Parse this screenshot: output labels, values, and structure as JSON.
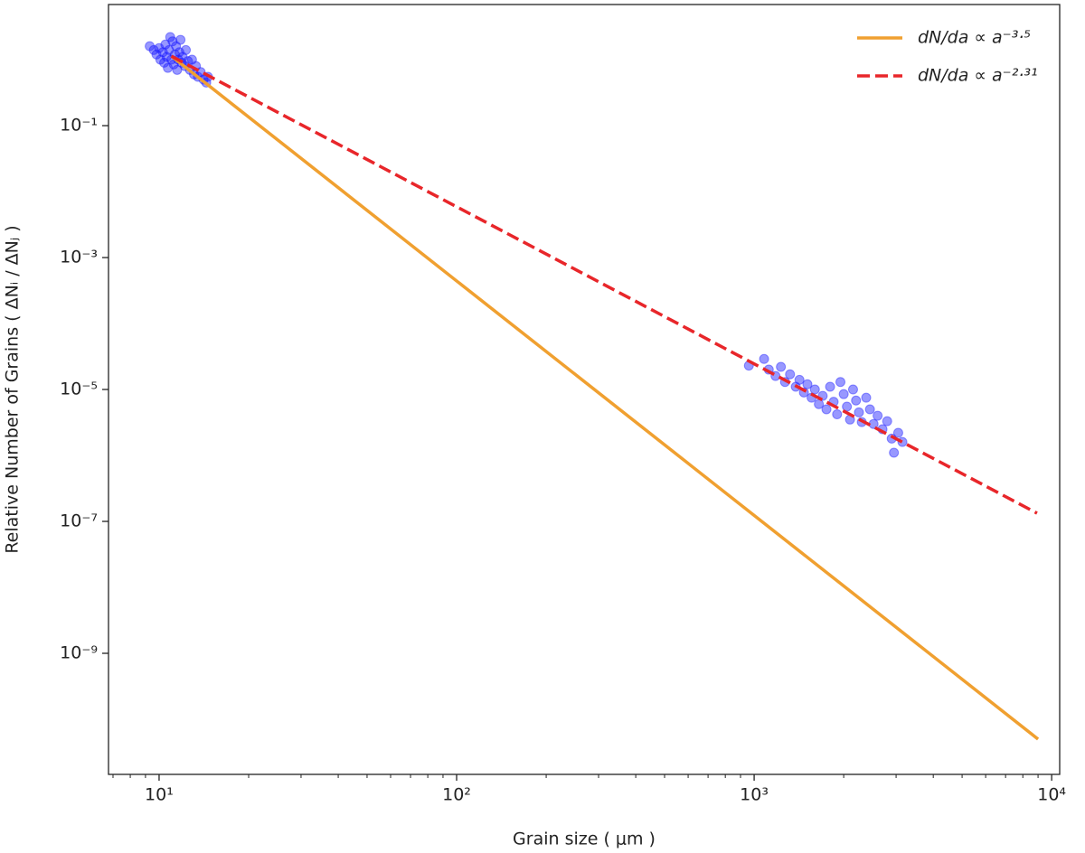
{
  "chart_data": {
    "type": "scatter",
    "xlabel": "Grain size ( μm )",
    "ylabel": "Relative Number of Grains ( ΔNᵢ / ΔNⱼ )",
    "xscale": "log",
    "yscale": "log",
    "xlim": [
      6.76,
      10640
    ],
    "ylim": [
      1.46e-11,
      6.86
    ],
    "xticks": [
      {
        "value": 10,
        "label": "10¹"
      },
      {
        "value": 100,
        "label": "10²"
      },
      {
        "value": 1000,
        "label": "10³"
      },
      {
        "value": 10000,
        "label": "10⁴"
      }
    ],
    "xminorticks": [
      7,
      8,
      9,
      20,
      30,
      40,
      50,
      60,
      70,
      80,
      90,
      200,
      300,
      400,
      500,
      600,
      700,
      800,
      900,
      2000,
      3000,
      4000,
      5000,
      6000,
      7000,
      8000,
      9000
    ],
    "yticks": [
      {
        "value": 0.1,
        "label": "10⁻¹"
      },
      {
        "value": 0.001,
        "label": "10⁻³"
      },
      {
        "value": 1e-05,
        "label": "10⁻⁵"
      },
      {
        "value": 1e-07,
        "label": "10⁻⁷"
      },
      {
        "value": 1e-09,
        "label": "10⁻⁹"
      }
    ],
    "legend": "upper right",
    "series": [
      {
        "type": "scatter",
        "color": "#1a1aff",
        "alpha": 0.45,
        "x": [
          9.3,
          9.6,
          9.8,
          10.0,
          10.1,
          10.3,
          10.4,
          10.5,
          10.6,
          10.7,
          10.8,
          10.9,
          11.0,
          11.1,
          11.2,
          11.3,
          11.4,
          11.5,
          11.6,
          11.7,
          11.8,
          11.9,
          12.0,
          12.2,
          12.3,
          12.5,
          12.7,
          12.9,
          13.1,
          13.3,
          13.5,
          13.8,
          14.1,
          14.4,
          14.6,
          960,
          1080,
          1120,
          1180,
          1230,
          1270,
          1320,
          1380,
          1420,
          1470,
          1510,
          1560,
          1600,
          1650,
          1700,
          1750,
          1800,
          1850,
          1900,
          1950,
          2000,
          2050,
          2100,
          2150,
          2200,
          2250,
          2300,
          2380,
          2450,
          2520,
          2600,
          2700,
          2800,
          2900,
          2950,
          3050,
          3150
        ],
        "values": [
          1.6,
          1.4,
          1.2,
          1.5,
          1.0,
          1.3,
          0.9,
          1.7,
          1.1,
          0.75,
          1.4,
          2.2,
          1.0,
          1.9,
          0.85,
          1.2,
          1.6,
          0.7,
          1.0,
          1.3,
          2.0,
          0.9,
          1.1,
          0.8,
          1.4,
          0.95,
          0.7,
          1.0,
          0.6,
          0.8,
          0.55,
          0.65,
          0.5,
          0.45,
          0.55,
          2.3e-05,
          2.9e-05,
          2e-05,
          1.6e-05,
          2.2e-05,
          1.3e-05,
          1.7e-05,
          1.1e-05,
          1.4e-05,
          9e-06,
          1.2e-05,
          7.5e-06,
          1e-05,
          6e-06,
          8e-06,
          5e-06,
          1.1e-05,
          6.5e-06,
          4.2e-06,
          1.3e-05,
          8.5e-06,
          5.5e-06,
          3.5e-06,
          1e-05,
          6.8e-06,
          4.5e-06,
          3.2e-06,
          7.5e-06,
          5e-06,
          3e-06,
          4e-06,
          2.5e-06,
          3.3e-06,
          1.8e-06,
          1.1e-06,
          2.2e-06,
          1.6e-06
        ]
      },
      {
        "type": "line",
        "name": "dN/da ∝ a⁻³·⁵",
        "color": "#f0a030",
        "linestyle": "solid",
        "x": [
          11,
          9000
        ],
        "values": [
          1.13,
          5e-11
        ]
      },
      {
        "type": "line",
        "name": "dN/da ∝ a⁻²·³¹",
        "color": "#e8262a",
        "linestyle": "dashed",
        "x": [
          11,
          8930
        ],
        "values": [
          1.13,
          1.33e-07
        ]
      }
    ]
  }
}
